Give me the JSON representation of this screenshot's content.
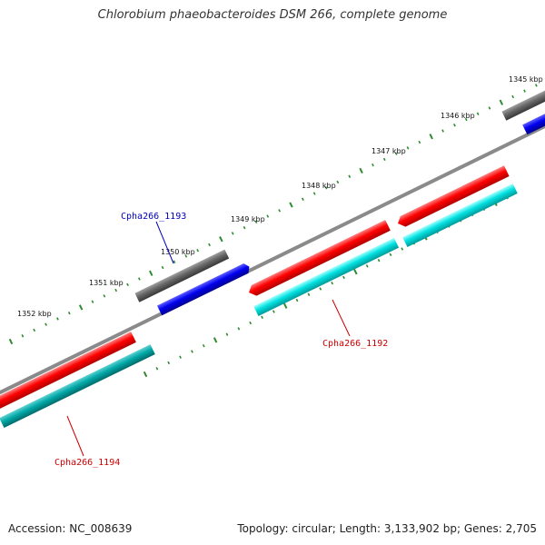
{
  "title": "Chlorobium phaeobacteroides DSM 266, complete genome",
  "footer": {
    "accession": "Accession: NC_008639",
    "summary": "Topology: circular; Length: 3,133,902 bp; Genes: 2,705"
  },
  "colors": {
    "backbone": "#8a8a8a",
    "cds_forward": "#ff0000",
    "cds_reverse": "#0000ee",
    "gene_forward": "#00d8d8",
    "gene_forward_dark": "#00a8a8",
    "gene_reverse": "#666666",
    "tick": "#2e8b2e",
    "label_forward": "#cc0000",
    "label_reverse": "#0000bb"
  },
  "ticks": [
    {
      "label": "1345 kbp"
    },
    {
      "label": "1346 kbp"
    },
    {
      "label": "1347 kbp"
    },
    {
      "label": "1348 kbp"
    },
    {
      "label": "1349 kbp"
    },
    {
      "label": "1350 kbp"
    },
    {
      "label": "1351 kbp"
    },
    {
      "label": "1352 kbp"
    }
  ],
  "gene_labels": [
    {
      "text": "Cpha266_1193",
      "strand": "reverse"
    },
    {
      "text": "Cpha266_1192",
      "strand": "forward"
    },
    {
      "text": "Cpha266_1194",
      "strand": "forward"
    }
  ]
}
